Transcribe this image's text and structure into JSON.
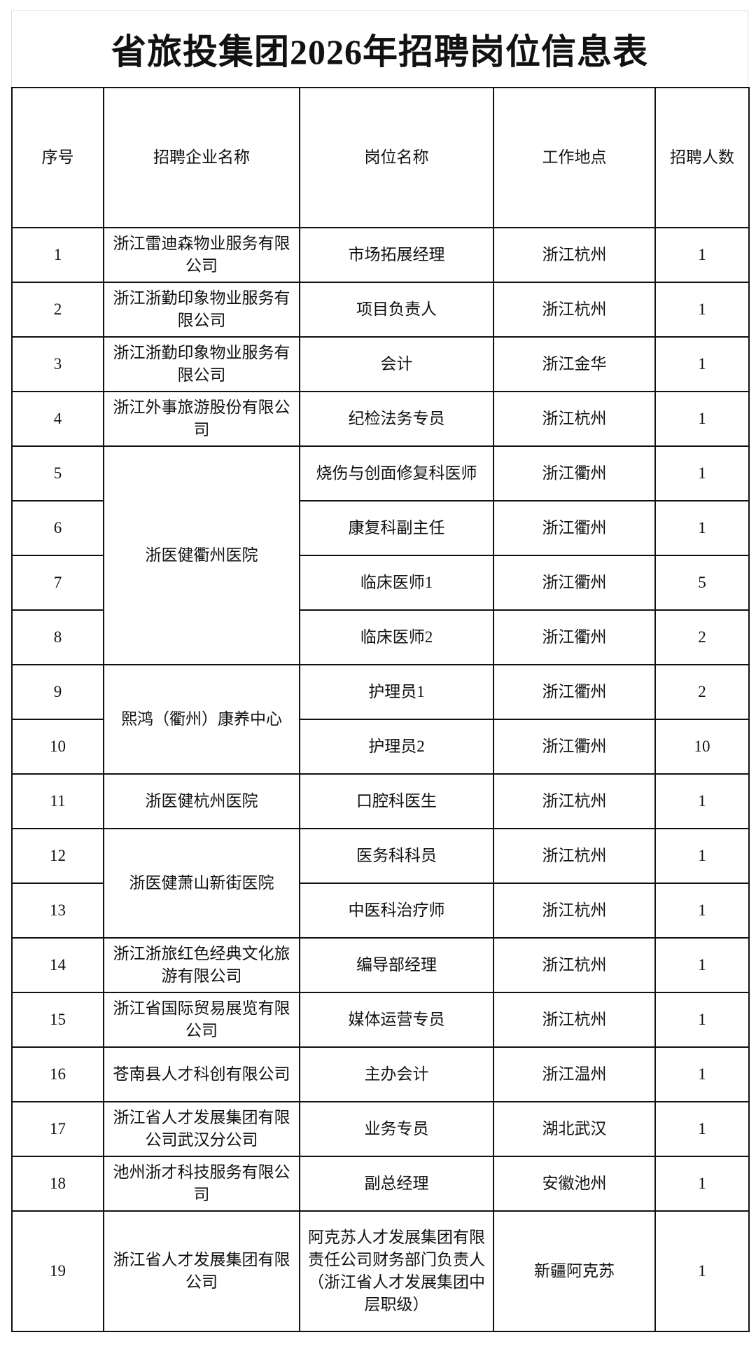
{
  "title": "省旅投集团2026年招聘岗位信息表",
  "headers": [
    "序号",
    "招聘企业名称",
    "岗位名称",
    "工作地点",
    "招聘人数"
  ],
  "rows": [
    {
      "no": "1",
      "company": "浙江雷迪森物业服务有限公司",
      "position": "市场拓展经理",
      "location": "浙江杭州",
      "count": "1"
    },
    {
      "no": "2",
      "company": "浙江浙勤印象物业服务有限公司",
      "position": "项目负责人",
      "location": "浙江杭州",
      "count": "1"
    },
    {
      "no": "3",
      "company": "浙江浙勤印象物业服务有限公司",
      "position": "会计",
      "location": "浙江金华",
      "count": "1"
    },
    {
      "no": "4",
      "company": "浙江外事旅游股份有限公司",
      "position": "纪检法务专员",
      "location": "浙江杭州",
      "count": "1"
    },
    {
      "no": "5",
      "company": "浙医健衢州医院",
      "position": "烧伤与创面修复科医师",
      "location": "浙江衢州",
      "count": "1"
    },
    {
      "no": "6",
      "company": "",
      "position": "康复科副主任",
      "location": "浙江衢州",
      "count": "1"
    },
    {
      "no": "7",
      "company": "",
      "position": "临床医师1",
      "location": "浙江衢州",
      "count": "5"
    },
    {
      "no": "8",
      "company": "",
      "position": "临床医师2",
      "location": "浙江衢州",
      "count": "2"
    },
    {
      "no": "9",
      "company": "熙鸿（衢州）康养中心",
      "position": "护理员1",
      "location": "浙江衢州",
      "count": "2"
    },
    {
      "no": "10",
      "company": "",
      "position": "护理员2",
      "location": "浙江衢州",
      "count": "10"
    },
    {
      "no": "11",
      "company": "浙医健杭州医院",
      "position": "口腔科医生",
      "location": "浙江杭州",
      "count": "1"
    },
    {
      "no": "12",
      "company": "浙医健萧山新街医院",
      "position": "医务科科员",
      "location": "浙江杭州",
      "count": "1"
    },
    {
      "no": "13",
      "company": "",
      "position": "中医科治疗师",
      "location": "浙江杭州",
      "count": "1"
    },
    {
      "no": "14",
      "company": "浙江浙旅红色经典文化旅游有限公司",
      "position": "编导部经理",
      "location": "浙江杭州",
      "count": "1"
    },
    {
      "no": "15",
      "company": "浙江省国际贸易展览有限公司",
      "position": "媒体运营专员",
      "location": "浙江杭州",
      "count": "1"
    },
    {
      "no": "16",
      "company": "苍南县人才科创有限公司",
      "position": "主办会计",
      "location": "浙江温州",
      "count": "1"
    },
    {
      "no": "17",
      "company": "浙江省人才发展集团有限公司武汉分公司",
      "position": "业务专员",
      "location": "湖北武汉",
      "count": "1"
    },
    {
      "no": "18",
      "company": "池州浙才科技服务有限公司",
      "position": "副总经理",
      "location": "安徽池州",
      "count": "1"
    },
    {
      "no": "19",
      "company": "浙江省人才发展集团有限公司",
      "position": "阿克苏人才发展集团有限责任公司财务部门负责人（浙江省人才发展集团中层职级）",
      "location": "新疆阿克苏",
      "count": "1"
    }
  ]
}
